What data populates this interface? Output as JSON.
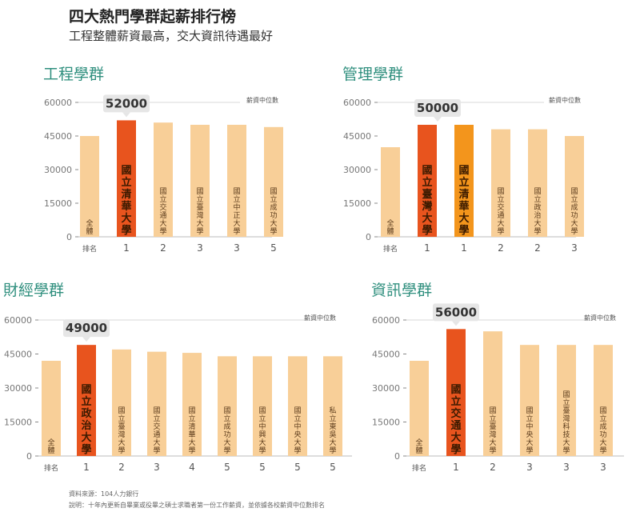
{
  "header": {
    "title": "四大熱門學群起薪排行榜",
    "subtitle": "工程整體薪資最高，交大資訊待遇最好"
  },
  "colors": {
    "bar_light": "#f8cf98",
    "bar_top": "#e8541e",
    "bar_top2": "#f3951c",
    "title": "#2f8f7e",
    "grid": "#d9d9d9"
  },
  "chart_data": [
    {
      "type": "bar",
      "title": "工程學群",
      "ylabel": "",
      "legend_label": "薪資中位數",
      "ylim": [
        0,
        60000
      ],
      "yticks": [
        0,
        15000,
        30000,
        45000,
        60000
      ],
      "rank_header": "排名",
      "categories": [
        "全體",
        "國立清華大學",
        "國立交通大學",
        "國立臺灣大學",
        "國立中正大學",
        "國立成功大學"
      ],
      "ranks": [
        "",
        "1",
        "2",
        "3",
        "3",
        "5"
      ],
      "values": [
        45000,
        52000,
        51000,
        50000,
        50000,
        49000
      ],
      "highlight": [
        1
      ],
      "callout": "52000"
    },
    {
      "type": "bar",
      "title": "管理學群",
      "ylabel": "",
      "legend_label": "薪資中位數",
      "ylim": [
        0,
        60000
      ],
      "yticks": [
        0,
        15000,
        30000,
        45000,
        60000
      ],
      "rank_header": "排名",
      "categories": [
        "全體",
        "國立臺灣大學",
        "國立清華大學",
        "國立交通大學",
        "國立政治大學",
        "國立成功大學"
      ],
      "ranks": [
        "",
        "1",
        "1",
        "2",
        "2",
        "3"
      ],
      "values": [
        40000,
        50000,
        50000,
        48000,
        48000,
        45000
      ],
      "highlight": [
        1,
        2
      ],
      "callout": "50000"
    },
    {
      "type": "bar",
      "title": "財經學群",
      "ylabel": "",
      "legend_label": "薪資中位數",
      "ylim": [
        0,
        60000
      ],
      "yticks": [
        0,
        15000,
        30000,
        45000,
        60000
      ],
      "rank_header": "排名",
      "categories": [
        "全體",
        "國立政治大學",
        "國立臺灣大學",
        "國立交通大學",
        "國立清華大學",
        "國立成功大學",
        "國立中興大學",
        "國立中央大學",
        "私立東吳大學"
      ],
      "ranks": [
        "",
        "1",
        "2",
        "3",
        "4",
        "5",
        "5",
        "5",
        "5"
      ],
      "values": [
        42000,
        49000,
        47000,
        46000,
        45500,
        44000,
        44000,
        44000,
        44000
      ],
      "highlight": [
        1
      ],
      "callout": "49000"
    },
    {
      "type": "bar",
      "title": "資訊學群",
      "ylabel": "",
      "legend_label": "薪資中位數",
      "ylim": [
        0,
        60000
      ],
      "yticks": [
        0,
        15000,
        30000,
        45000,
        60000
      ],
      "rank_header": "排名",
      "categories": [
        "全體",
        "國立交通大學",
        "國立臺灣大學",
        "國立中央大學",
        "國立臺灣科技大學",
        "國立成功大學"
      ],
      "ranks": [
        "",
        "1",
        "2",
        "3",
        "3",
        "3"
      ],
      "values": [
        42000,
        56000,
        55000,
        49000,
        49000,
        49000
      ],
      "highlight": [
        1
      ],
      "callout": "56000"
    }
  ],
  "footer": {
    "source": "資料來源：104人力銀行",
    "note": "說明：十年內更新自畢業或役畢之碩士求職者第一份工作薪資，並依據各校薪資中位數排名"
  }
}
